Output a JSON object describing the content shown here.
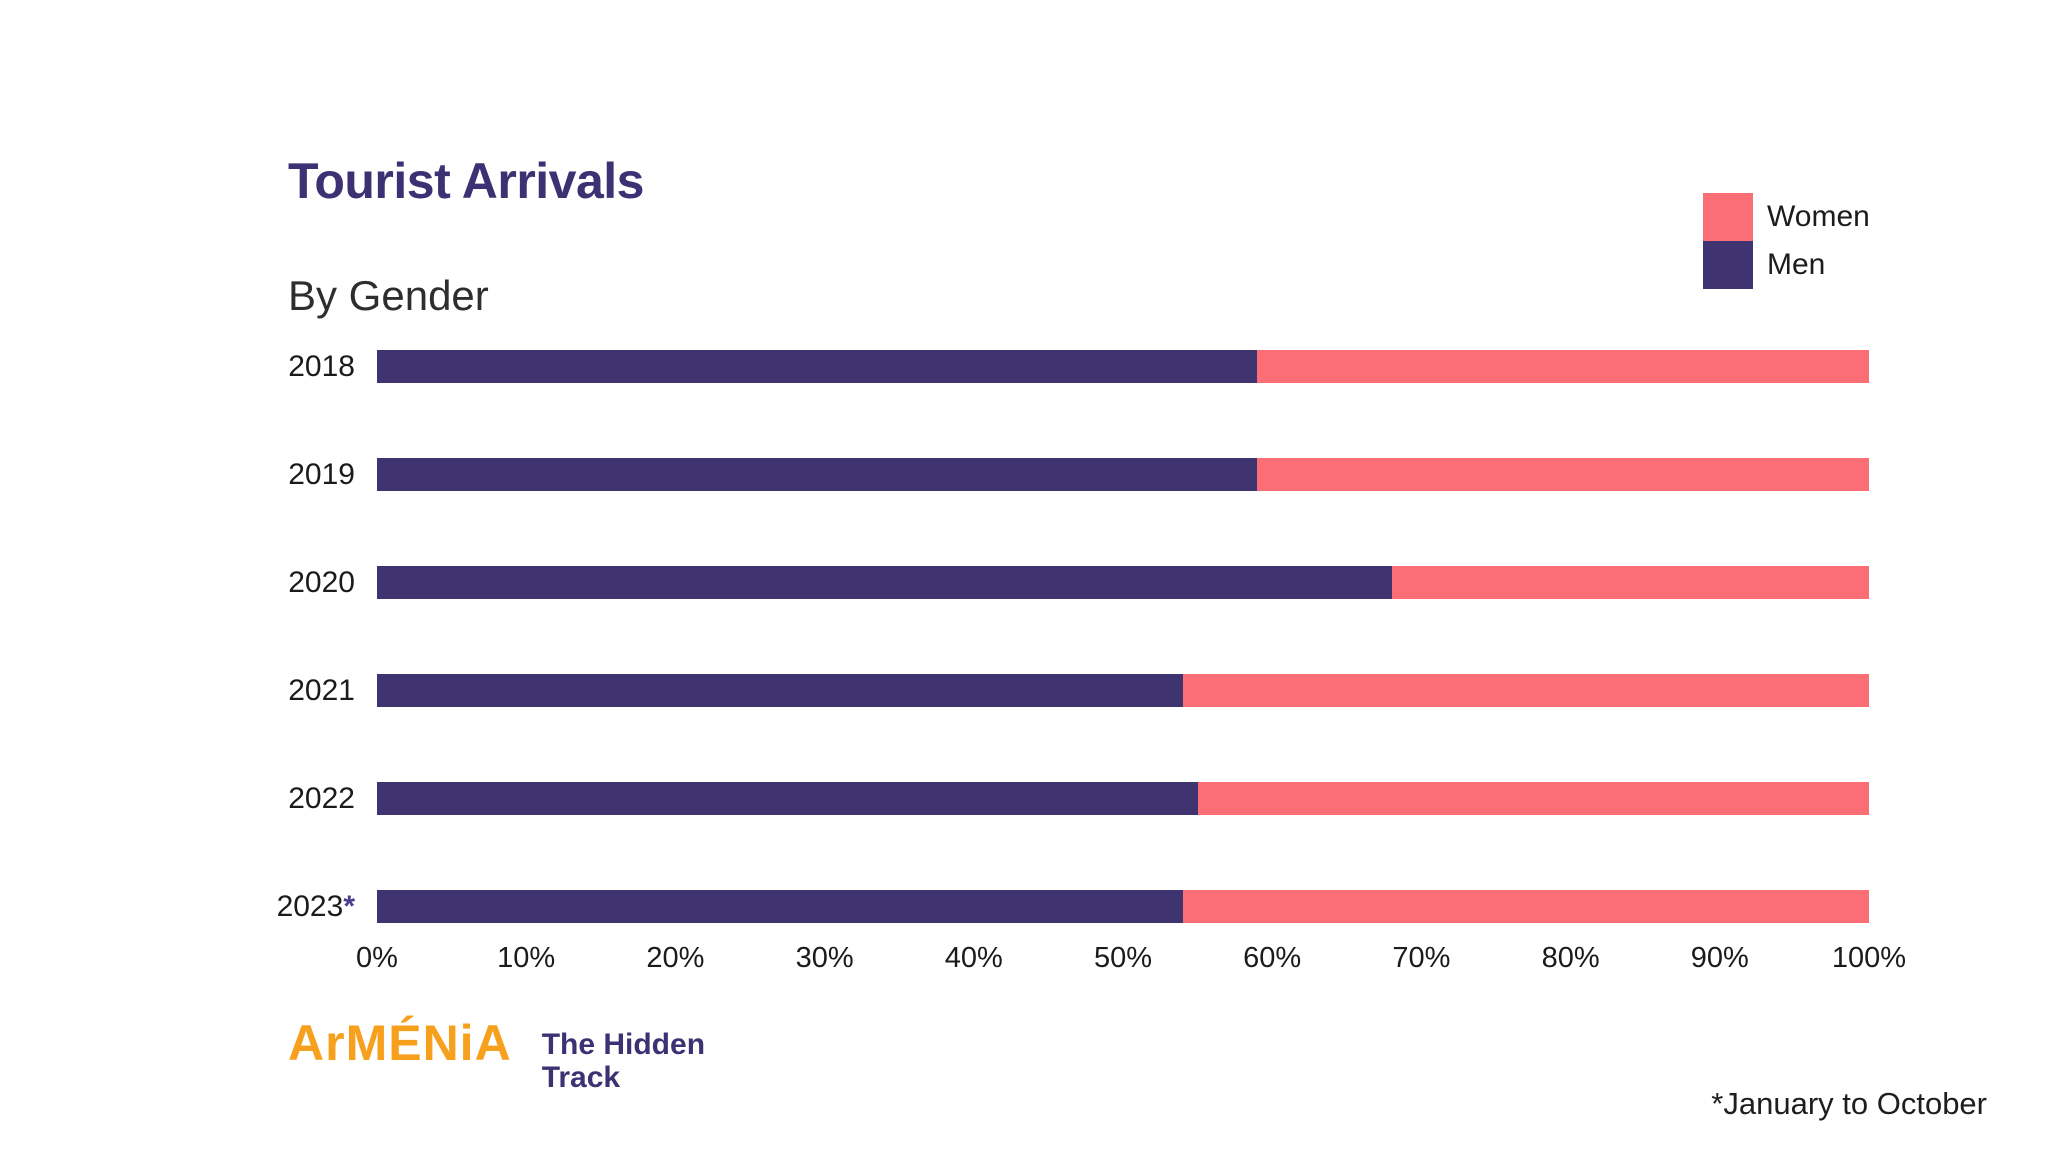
{
  "header": {
    "title": "Tourist Arrivals",
    "subtitle": "By Gender"
  },
  "legend": {
    "position": "top-right",
    "items": [
      {
        "label": "Women",
        "color": "#FB6E75"
      },
      {
        "label": "Men",
        "color": "#3F3370"
      }
    ]
  },
  "chart_data": {
    "type": "bar",
    "orientation": "horizontal",
    "stacked": true,
    "unit": "percent",
    "title": "Tourist Arrivals",
    "subtitle": "By Gender",
    "categories": [
      "2018",
      "2019",
      "2020",
      "2021",
      "2022",
      "2023*"
    ],
    "series": [
      {
        "name": "Men",
        "color": "#3F3370",
        "values": [
          59,
          59,
          68,
          54,
          55,
          54
        ]
      },
      {
        "name": "Women",
        "color": "#FB6E75",
        "values": [
          41,
          41,
          32,
          46,
          45,
          46
        ]
      }
    ],
    "xlim": [
      0,
      100
    ],
    "x_ticks": [
      "0%",
      "10%",
      "20%",
      "30%",
      "40%",
      "50%",
      "60%",
      "70%",
      "80%",
      "90%",
      "100%"
    ],
    "grid": false,
    "legend_position": "top-right",
    "category_note_color": "#4B3C92"
  },
  "footer": {
    "logo": {
      "wordmark": "ArMÉNiA",
      "tagline_line1": "The Hidden",
      "tagline_line2": "Track"
    },
    "footnote": "*January to October"
  },
  "colors": {
    "men": "#3F3370",
    "women": "#FB6E75",
    "title": "#3E3173",
    "logo_orange": "#F6A01E",
    "text": "#1B1B1B"
  }
}
